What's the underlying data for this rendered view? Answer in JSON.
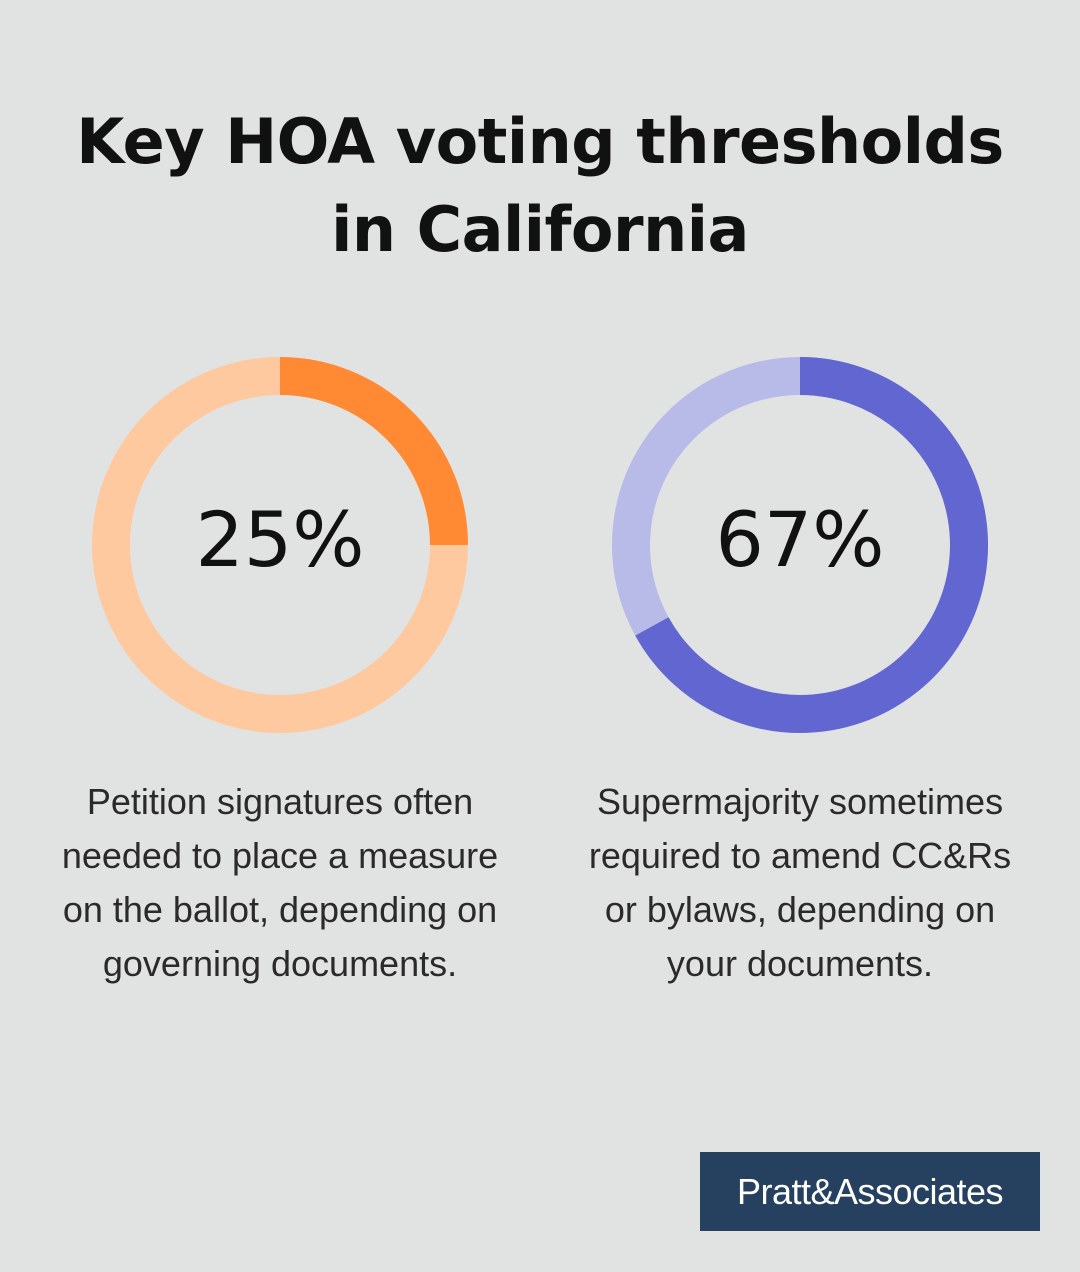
{
  "title": {
    "line1": "Key HOA voting thresholds",
    "line2": "in California"
  },
  "chart_data": [
    {
      "type": "pie",
      "value": 25,
      "label": "25%",
      "description": "Petition signatures often needed to place a measure on the ballot, depending on governing documents.",
      "colors": {
        "fill": "#ff8a33",
        "track": "#ffc9a0"
      }
    },
    {
      "type": "pie",
      "value": 67,
      "label": "67%",
      "description": "Supermajority sometimes required to amend CC&Rs or bylaws, depending on your documents.",
      "colors": {
        "fill": "#6266d0",
        "track": "#b8bae8"
      }
    }
  ],
  "logo": {
    "text": "Pratt&Associates"
  }
}
